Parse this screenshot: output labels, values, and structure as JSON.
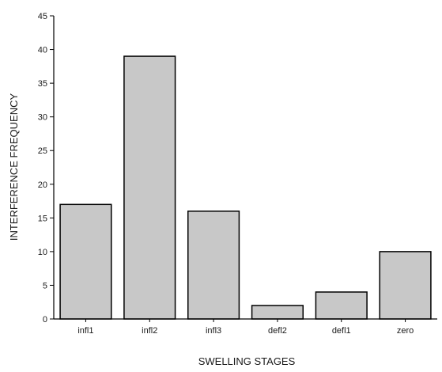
{
  "chart_data": {
    "type": "bar",
    "categories": [
      "infl1",
      "infl2",
      "infl3",
      "defl2",
      "defl1",
      "zero"
    ],
    "values": [
      17,
      39,
      16,
      2,
      4,
      10
    ],
    "title": "",
    "xlabel": "SWELLING STAGES",
    "ylabel": "INTERFERENCE FREQUENCY",
    "ylim": [
      0,
      45
    ],
    "yticks": [
      0,
      5,
      10,
      15,
      20,
      25,
      30,
      35,
      40,
      45
    ],
    "grid": false,
    "legend": "none",
    "bar_color": "#c8c8c8",
    "bar_edge_color": "#000000"
  }
}
